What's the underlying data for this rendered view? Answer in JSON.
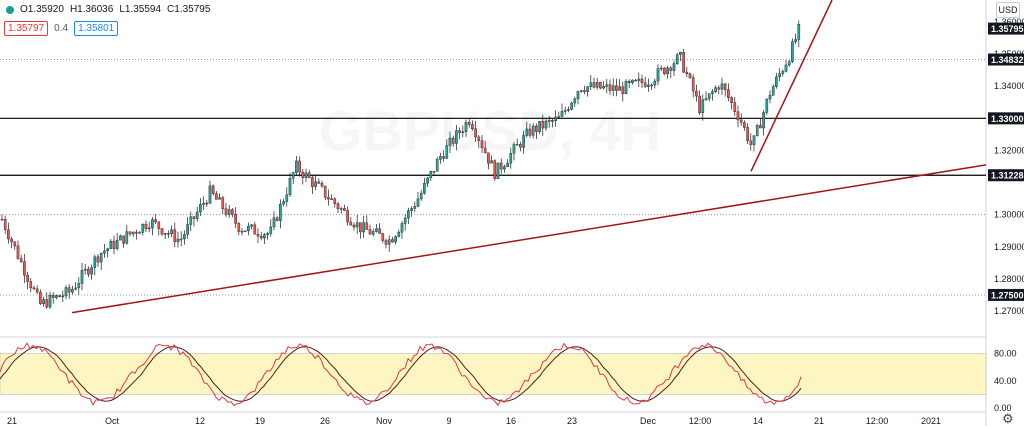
{
  "ohlc": {
    "open": "O1.35920",
    "high": "H1.36036",
    "low": "L1.35594",
    "close": "C1.35795"
  },
  "quote": {
    "bid": "1.35797",
    "spread": "0.4",
    "ask": "1.35801"
  },
  "currency_label": "USD",
  "watermark": "GBPUSD, 4H",
  "colors": {
    "up": "#26a69a",
    "down": "#ef5350",
    "trendline": "#a31515",
    "osc_band": "#fdf6c3",
    "k_line": "#e53935",
    "d_line": "#4a1f1f",
    "level_line": "#000000"
  },
  "chart_data": {
    "type": "candlestick",
    "price_axis": {
      "ticks": [
        "1.36000",
        "1.35000",
        "1.34000",
        "1.32000",
        "1.30000",
        "1.29000",
        "1.28000",
        "1.27000"
      ],
      "highlighted_labels": [
        "1.35795",
        "1.34832",
        "1.33000",
        "1.31228",
        "1.27500"
      ]
    },
    "time_axis": {
      "labels": [
        "21",
        "Oct",
        "12",
        "19",
        "26",
        "Nov",
        "9",
        "16",
        "23",
        "Dec",
        "12:00",
        "14",
        "21",
        "12:00",
        "2021"
      ]
    },
    "horizontal_levels": [
      1.33,
      1.31228
    ],
    "dotted_levels": [
      1.34832,
      1.3,
      1.275
    ],
    "trendlines": [
      {
        "from": [
          1.2695
        ],
        "to": [
          1.3155
        ]
      },
      {
        "from": [
          1.3135
        ],
        "to": [
          1.3665
        ]
      }
    ],
    "oscillator": {
      "ticks": [
        "80.00",
        "40.00",
        "0.00"
      ],
      "band": [
        20,
        80
      ]
    }
  }
}
